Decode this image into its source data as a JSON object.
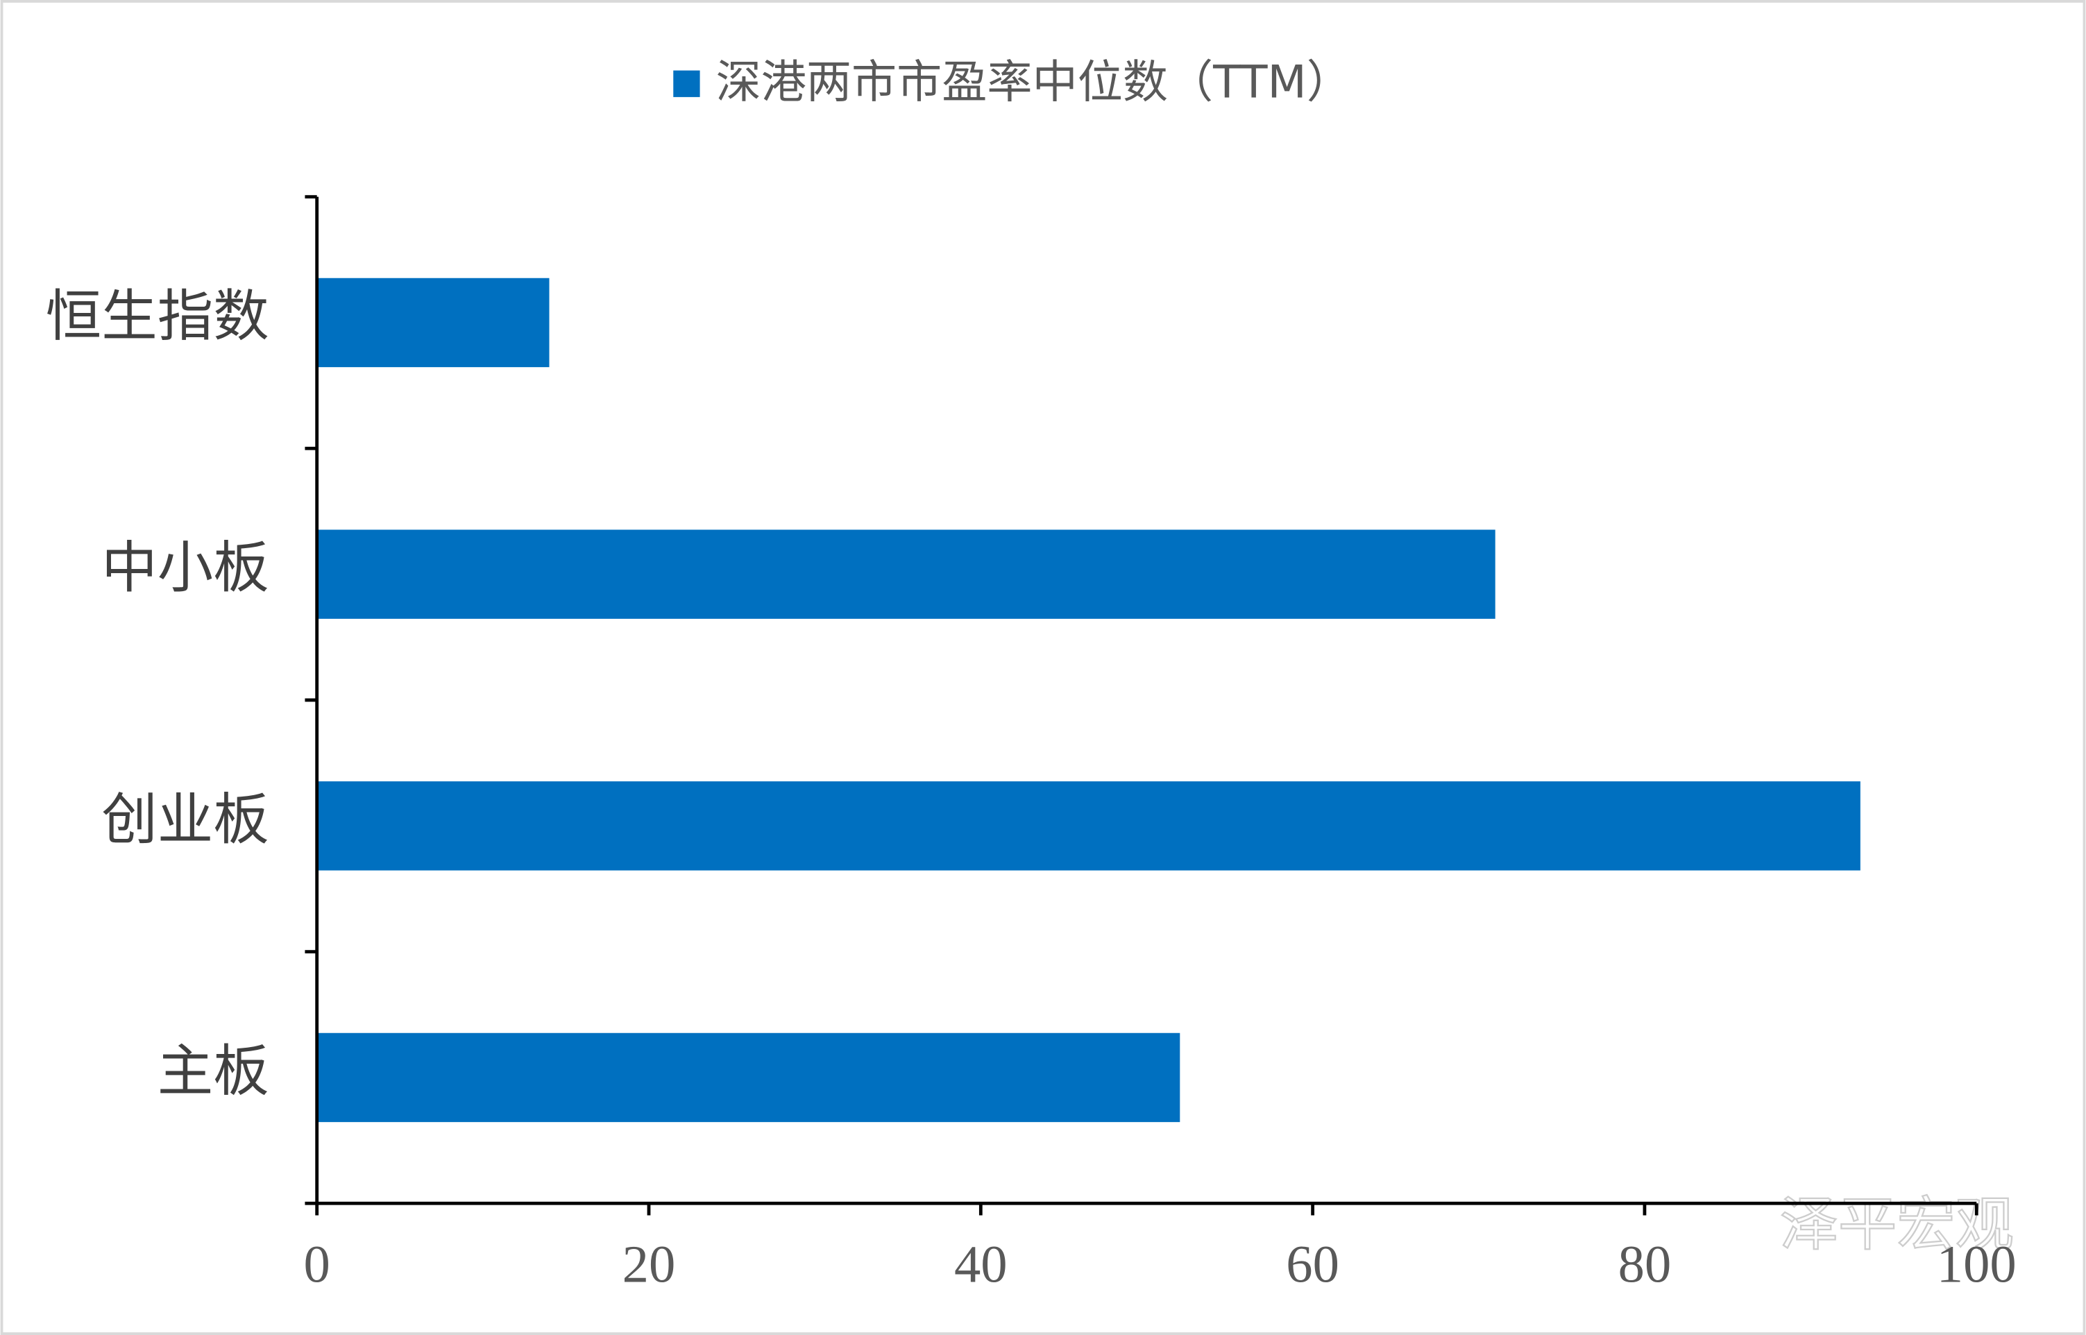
{
  "chart_data": {
    "type": "bar",
    "orientation": "horizontal",
    "categories": [
      "恒生指数",
      "中小板",
      "创业板",
      "主板"
    ],
    "series": [
      {
        "name": "深港两市市盈率中位数（TTM）",
        "color": "#0070c0",
        "values": [
          14,
          71,
          93,
          52
        ]
      }
    ],
    "xlim": [
      0,
      100
    ],
    "xticks": [
      0,
      20,
      40,
      60,
      80,
      100
    ],
    "legend": "top",
    "grid": false,
    "watermark": "泽平宏观"
  }
}
